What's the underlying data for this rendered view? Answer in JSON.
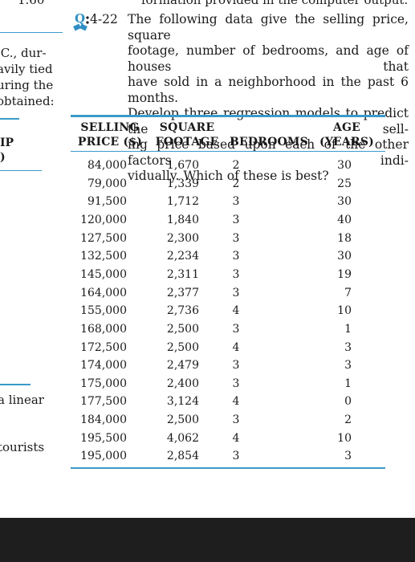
{
  "top_fragments": {
    "left": "1.60",
    "right": "formation provided in the computer output."
  },
  "left_margin": {
    "lines": [
      ".C., dur-",
      "avily tied",
      "uring the",
      "obtained:"
    ],
    "ip": "IP",
    "paren": ")",
    "linear": "a linear",
    "tourists": "tourists"
  },
  "problem": {
    "icon": "quiz-book-icon",
    "number": "4-22",
    "lines": [
      "The following data give the selling price, square",
      "footage, number of bedrooms, and age of houses that",
      "have sold in a neighborhood in the past 6 months.",
      "Develop three regression models to predict the sell-",
      "ing price based upon each of the other factors indi-",
      "vidually. Which of these is best?"
    ]
  },
  "table": {
    "headers": [
      [
        "SELLING",
        "PRICE ($)"
      ],
      [
        "SQUARE",
        "FOOTAGE"
      ],
      [
        "",
        "BEDROOMS"
      ],
      [
        "AGE",
        "(YEARS)"
      ]
    ],
    "rows": [
      [
        "84,000",
        "1,670",
        "2",
        "30"
      ],
      [
        "79,000",
        "1,339",
        "2",
        "25"
      ],
      [
        "91,500",
        "1,712",
        "3",
        "30"
      ],
      [
        "120,000",
        "1,840",
        "3",
        "40"
      ],
      [
        "127,500",
        "2,300",
        "3",
        "18"
      ],
      [
        "132,500",
        "2,234",
        "3",
        "30"
      ],
      [
        "145,000",
        "2,311",
        "3",
        "19"
      ],
      [
        "164,000",
        "2,377",
        "3",
        "7"
      ],
      [
        "155,000",
        "2,736",
        "4",
        "10"
      ],
      [
        "168,000",
        "2,500",
        "3",
        "1"
      ],
      [
        "172,500",
        "2,500",
        "4",
        "3"
      ],
      [
        "174,000",
        "2,479",
        "3",
        "3"
      ],
      [
        "175,000",
        "2,400",
        "3",
        "1"
      ],
      [
        "177,500",
        "3,124",
        "4",
        "0"
      ],
      [
        "184,000",
        "2,500",
        "3",
        "2"
      ],
      [
        "195,500",
        "4,062",
        "4",
        "10"
      ],
      [
        "195,000",
        "2,854",
        "3",
        "3"
      ]
    ]
  },
  "colors": {
    "rule": "#3a9bc9",
    "icon": "#2f8fc4",
    "bottom_bar": "#1e1e1e"
  }
}
